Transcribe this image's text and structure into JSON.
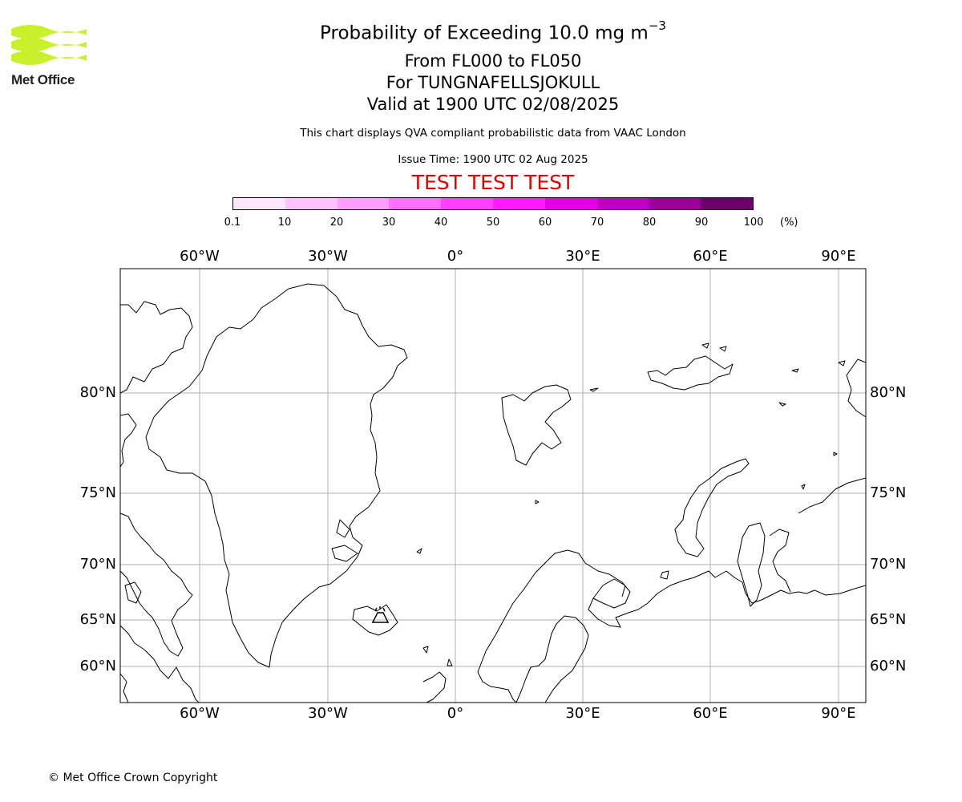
{
  "logo": {
    "text": "Met Office",
    "icon": "met-office-waves-logo",
    "color": "#c8f02c"
  },
  "title": {
    "main": "Probability of Exceeding 10.0 mg m",
    "main_exponent": "−3",
    "levels": "From FL000 to FL050",
    "location": "For TUNGNAFELLSJOKULL",
    "valid": "Valid at 1900 UTC 02/08/2025"
  },
  "note": "This chart displays QVA compliant probabilistic data from VAAC London",
  "issue_time": "Issue Time: 1900 UTC 02 Aug 2025",
  "test_banner": "TEST TEST TEST",
  "colorbar": {
    "ticks": [
      "0.1",
      "10",
      "20",
      "30",
      "40",
      "50",
      "60",
      "70",
      "80",
      "90",
      "100"
    ],
    "unit": "(%)",
    "colors": [
      "#ffe6ff",
      "#ffc2ff",
      "#ff9eff",
      "#ff70ff",
      "#ff40ff",
      "#ff1aff",
      "#e600e6",
      "#c000c0",
      "#980098",
      "#6a006a"
    ]
  },
  "map": {
    "lon_labels": [
      "60°W",
      "30°W",
      "0°",
      "30°E",
      "60°E",
      "90°E"
    ],
    "lat_labels": [
      "80°N",
      "75°N",
      "70°N",
      "65°N",
      "60°N"
    ],
    "gridline_color": "#b0b0b0",
    "marker": "volcano-symbol",
    "volcano_name": "TUNGNAFELLSJOKULL"
  },
  "copyright": "© Met Office Crown Copyright"
}
